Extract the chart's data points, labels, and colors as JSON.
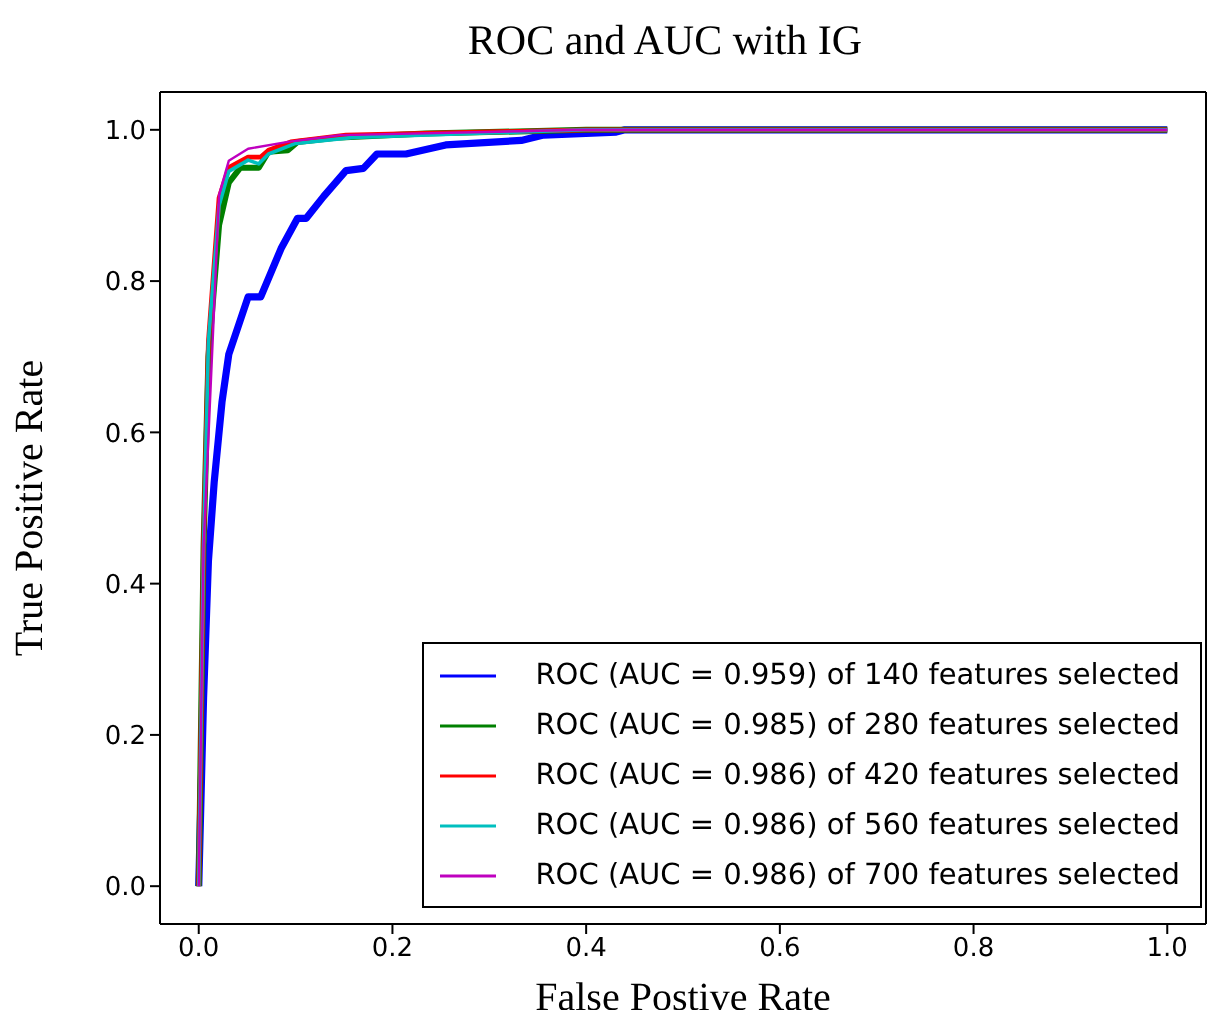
{
  "chart_data": {
    "type": "line",
    "title": "ROC and AUC with IG",
    "xlabel": "False Postive Rate",
    "ylabel": "True Positive Rate",
    "xlim": [
      -0.04,
      1.04
    ],
    "ylim": [
      -0.05,
      1.05
    ],
    "xticks": [
      {
        "value": 0,
        "label": "0.0"
      },
      {
        "value": 0.2,
        "label": "0.2"
      },
      {
        "value": 0.4,
        "label": "0.4"
      },
      {
        "value": 0.6,
        "label": "0.6"
      },
      {
        "value": 0.8,
        "label": "0.8"
      },
      {
        "value": 1,
        "label": "1.0"
      }
    ],
    "yticks": [
      {
        "value": 0,
        "label": "0.0"
      },
      {
        "value": 0.2,
        "label": "0.2"
      },
      {
        "value": 0.4,
        "label": "0.4"
      },
      {
        "value": 0.6,
        "label": "0.6"
      },
      {
        "value": 0.8,
        "label": "0.8"
      },
      {
        "value": 1,
        "label": "1.0"
      }
    ],
    "legend": "bottom right",
    "marker": "none",
    "line_style": "solid",
    "series": [
      {
        "name": "ROC (AUC = 0.959) of 140 features selected",
        "color": "#0000ff",
        "x": [
          0,
          0.005,
          0.01,
          0.016,
          0.024,
          0.031,
          0.051,
          0.064,
          0.085,
          0.102,
          0.111,
          0.129,
          0.152,
          0.17,
          0.184,
          0.214,
          0.255,
          0.333,
          0.356,
          0.431,
          0.44,
          1
        ],
        "values": [
          0,
          0.25,
          0.43,
          0.535,
          0.64,
          0.703,
          0.779,
          0.779,
          0.843,
          0.883,
          0.883,
          0.912,
          0.946,
          0.949,
          0.968,
          0.968,
          0.98,
          0.986,
          0.993,
          0.997,
          1,
          1
        ]
      },
      {
        "name": "ROC (AUC = 0.985) of 280 features selected",
        "color": "#008000",
        "x": [
          0,
          0.005,
          0.01,
          0.021,
          0.031,
          0.043,
          0.062,
          0.072,
          0.092,
          0.102,
          0.146,
          0.234,
          0.4,
          1
        ],
        "values": [
          0,
          0.45,
          0.7,
          0.874,
          0.93,
          0.95,
          0.95,
          0.971,
          0.973,
          0.984,
          0.99,
          0.995,
          1,
          1
        ]
      },
      {
        "name": "ROC (AUC = 0.986) of 420 features selected",
        "color": "#ff0000",
        "x": [
          0,
          0.005,
          0.01,
          0.021,
          0.031,
          0.051,
          0.064,
          0.072,
          0.095,
          0.152,
          0.4,
          1
        ],
        "values": [
          0,
          0.45,
          0.72,
          0.91,
          0.95,
          0.964,
          0.964,
          0.973,
          0.984,
          0.993,
          1,
          1
        ]
      },
      {
        "name": "ROC (AUC = 0.986) of 560 features selected",
        "color": "#00bfbf",
        "x": [
          0,
          0.005,
          0.01,
          0.021,
          0.031,
          0.051,
          0.062,
          0.072,
          0.1,
          0.16,
          0.4,
          1
        ],
        "values": [
          0,
          0.45,
          0.72,
          0.9,
          0.945,
          0.96,
          0.955,
          0.968,
          0.982,
          0.99,
          1,
          1
        ]
      },
      {
        "name": "ROC (AUC = 0.986) of 700 features selected",
        "color": "#bf00bf",
        "x": [
          0,
          0.005,
          0.008,
          0.021,
          0.031,
          0.051,
          0.092,
          0.146,
          0.4,
          1
        ],
        "values": [
          0,
          0.45,
          0.535,
          0.914,
          0.959,
          0.975,
          0.984,
          0.993,
          1,
          1
        ]
      }
    ]
  }
}
